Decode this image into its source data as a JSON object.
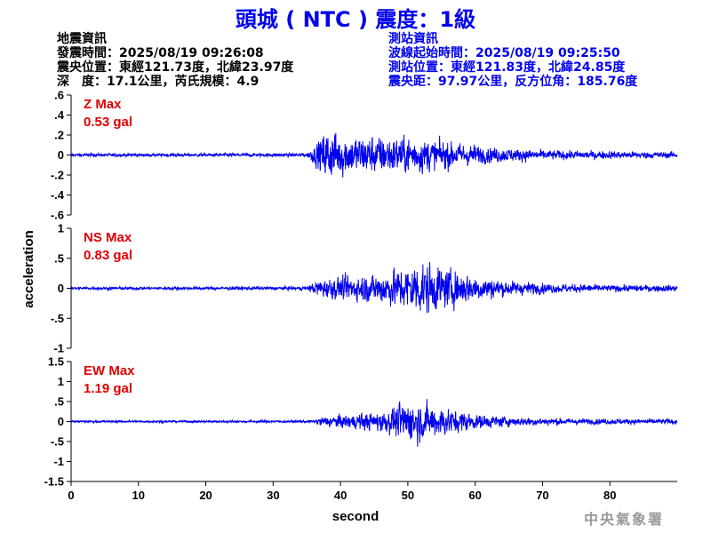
{
  "title": "頭城 ( NTC ) 震度：1級",
  "earthquake": {
    "heading": "地震資訊",
    "origin_time": "發震時間：2025/08/19 09:26:08",
    "epicenter": "震央位置：東經121.73度，北緯23.97度",
    "depth_magnitude": "深　度：17.1公里，芮氏規模：4.9"
  },
  "station": {
    "heading": "測站資訊",
    "wave_start": "波線起始時間：2025/08/19 09:25:50",
    "location": "測站位置：東經121.83度，北緯24.85度",
    "distance": "震央距：97.97公里，反方位角：185.76度"
  },
  "credit": "中央氣象署",
  "colors": {
    "trace": "#0000ee",
    "peak_label": "#e00000",
    "title": "#0000ee"
  },
  "chart_data": {
    "type": "line",
    "xlabel": "second",
    "ylabel": "acceleration",
    "xlim": [
      0,
      90
    ],
    "xticks": [
      0,
      10,
      20,
      30,
      40,
      50,
      60,
      70,
      80
    ],
    "panels": [
      {
        "name": "Z",
        "peak_label": "Z Max",
        "peak_value": "0.53 gal",
        "peak": 0.53,
        "ylim": [
          -0.6,
          0.6
        ],
        "yticks": [
          -0.6,
          -0.4,
          -0.2,
          0,
          0.2,
          0.4,
          0.6
        ],
        "noise": 0.025,
        "envelope": [
          [
            0,
            0.025
          ],
          [
            35,
            0.03
          ],
          [
            36.5,
            0.2
          ],
          [
            38,
            0.42
          ],
          [
            41,
            0.32
          ],
          [
            46,
            0.3
          ],
          [
            52,
            0.28
          ],
          [
            57,
            0.2
          ],
          [
            62,
            0.13
          ],
          [
            70,
            0.08
          ],
          [
            80,
            0.06
          ],
          [
            90,
            0.05
          ]
        ]
      },
      {
        "name": "NS",
        "peak_label": "NS Max",
        "peak_value": "0.83 gal",
        "peak": 0.83,
        "ylim": [
          -1,
          1
        ],
        "yticks": [
          -1,
          -0.5,
          0,
          0.5,
          1
        ],
        "noise": 0.04,
        "envelope": [
          [
            0,
            0.04
          ],
          [
            35,
            0.05
          ],
          [
            37,
            0.25
          ],
          [
            40,
            0.3
          ],
          [
            45,
            0.4
          ],
          [
            49,
            0.55
          ],
          [
            52,
            0.75
          ],
          [
            55,
            0.55
          ],
          [
            60,
            0.35
          ],
          [
            65,
            0.2
          ],
          [
            72,
            0.12
          ],
          [
            80,
            0.09
          ],
          [
            90,
            0.09
          ]
        ]
      },
      {
        "name": "EW",
        "peak_label": "EW Max",
        "peak_value": "1.19 gal",
        "peak": 1.19,
        "ylim": [
          -1.5,
          1.5
        ],
        "yticks": [
          -1.5,
          -1,
          -0.5,
          0,
          0.5,
          1,
          1.5
        ],
        "noise": 0.04,
        "envelope": [
          [
            0,
            0.04
          ],
          [
            36,
            0.05
          ],
          [
            37,
            0.2
          ],
          [
            42,
            0.3
          ],
          [
            47,
            0.45
          ],
          [
            50,
            0.85
          ],
          [
            53,
            0.7
          ],
          [
            56,
            0.55
          ],
          [
            60,
            0.3
          ],
          [
            66,
            0.18
          ],
          [
            75,
            0.12
          ],
          [
            90,
            0.1
          ]
        ]
      }
    ]
  }
}
